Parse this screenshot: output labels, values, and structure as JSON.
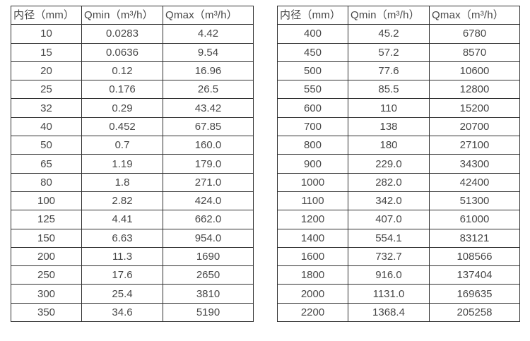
{
  "page": {
    "background": "#ffffff",
    "border_color": "#2f2f2f",
    "text_color": "#474747"
  },
  "chart_data": [
    {
      "type": "table",
      "title": "",
      "columns": [
        "内径（mm）",
        "Qmin（m³/h）",
        "Qmax（m³/h）"
      ],
      "rows": [
        [
          "10",
          "0.0283",
          "4.42"
        ],
        [
          "15",
          "0.0636",
          "9.54"
        ],
        [
          "20",
          "0.12",
          "16.96"
        ],
        [
          "25",
          "0.176",
          "26.5"
        ],
        [
          "32",
          "0.29",
          "43.42"
        ],
        [
          "40",
          "0.452",
          "67.85"
        ],
        [
          "50",
          "0.7",
          "160.0"
        ],
        [
          "65",
          "1.19",
          "179.0"
        ],
        [
          "80",
          "1.8",
          "271.0"
        ],
        [
          "100",
          "2.82",
          "424.0"
        ],
        [
          "125",
          "4.41",
          "662.0"
        ],
        [
          "150",
          "6.63",
          "954.0"
        ],
        [
          "200",
          "11.3",
          "1690"
        ],
        [
          "250",
          "17.6",
          "2650"
        ],
        [
          "300",
          "25.4",
          "3810"
        ],
        [
          "350",
          "34.6",
          "5190"
        ]
      ]
    },
    {
      "type": "table",
      "title": "",
      "columns": [
        "内径（mm）",
        "Qmin（m³/h）",
        "Qmax（m³/h）"
      ],
      "rows": [
        [
          "400",
          "45.2",
          "6780"
        ],
        [
          "450",
          "57.2",
          "8570"
        ],
        [
          "500",
          "77.6",
          "10600"
        ],
        [
          "550",
          "85.5",
          "12800"
        ],
        [
          "600",
          "110",
          "15200"
        ],
        [
          "700",
          "138",
          "20700"
        ],
        [
          "800",
          "180",
          "27100"
        ],
        [
          "900",
          "229.0",
          "34300"
        ],
        [
          "1000",
          "282.0",
          "42400"
        ],
        [
          "1100",
          "342.0",
          "51300"
        ],
        [
          "1200",
          "407.0",
          "61000"
        ],
        [
          "1400",
          "554.1",
          "83121"
        ],
        [
          "1600",
          "732.7",
          "108566"
        ],
        [
          "1800",
          "916.0",
          "137404"
        ],
        [
          "2000",
          "1131.0",
          "169635"
        ],
        [
          "2200",
          "1368.4",
          "205258"
        ]
      ]
    }
  ]
}
